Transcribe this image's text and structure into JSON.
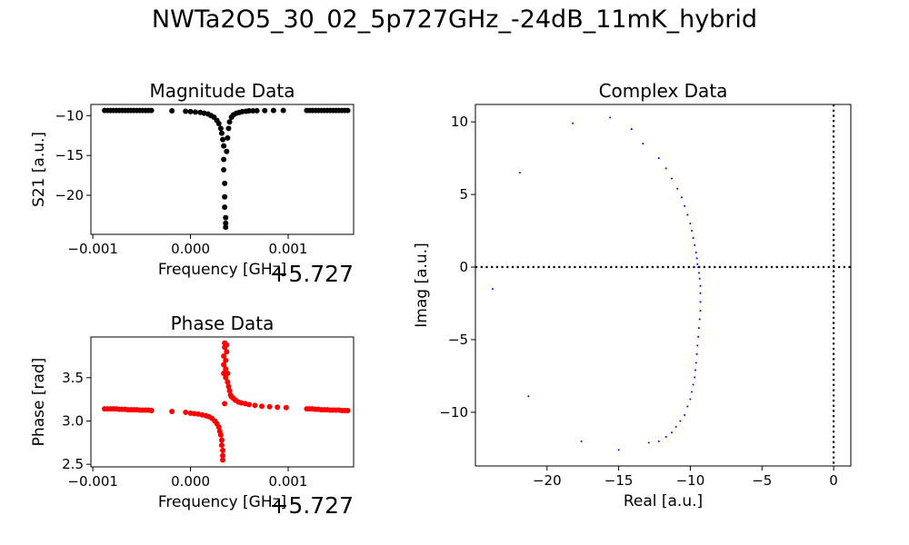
{
  "figure": {
    "suptitle": "NWTa2O5_30_02_5p727GHz_-24dB_11mK_hybrid"
  },
  "chart_data": [
    {
      "id": "magnitude",
      "type": "scatter",
      "title": "Magnitude Data",
      "xlabel": "Frequency [GHz]",
      "ylabel": "S21 [a.u.]",
      "x_offset_label": "+5.727",
      "xlim": [
        -0.00102,
        0.00167
      ],
      "ylim": [
        -24.9,
        -8.6
      ],
      "xticks": [
        -0.001,
        0.0,
        0.001
      ],
      "xtick_labels": [
        "−0.001",
        "0.000",
        "0.001"
      ],
      "yticks": [
        -10,
        -15,
        -20
      ],
      "ytick_labels": [
        "−10",
        "−15",
        "−20"
      ],
      "color": "#000000",
      "x": [
        -0.00088,
        -0.00085,
        -0.00082,
        -0.00079,
        -0.00076,
        -0.00073,
        -0.0007,
        -0.00067,
        -0.00064,
        -0.00061,
        -0.00058,
        -0.00055,
        -0.00052,
        -0.00049,
        -0.00046,
        -0.00043,
        -0.0004,
        -0.00019,
        -5e-05,
        0.0,
        5e-05,
        0.0001,
        0.00014,
        0.00018,
        0.00021,
        0.00024,
        0.00027,
        0.00029,
        0.00031,
        0.00032,
        0.00033,
        0.00034,
        0.00034,
        0.00034,
        0.00035,
        0.00035,
        0.00035,
        0.00036,
        0.00036,
        0.00036,
        0.00037,
        0.00038,
        0.00039,
        0.0004,
        0.00042,
        0.00044,
        0.00047,
        0.0005,
        0.00053,
        0.00057,
        0.0006,
        0.00064,
        0.00068,
        0.00076,
        0.00085,
        0.00095,
        0.00119,
        0.00122,
        0.00125,
        0.00128,
        0.00131,
        0.00134,
        0.00137,
        0.0014,
        0.00143,
        0.00146,
        0.00149,
        0.00152,
        0.00155,
        0.00158,
        0.00161
      ],
      "y": [
        -9.35,
        -9.35,
        -9.35,
        -9.35,
        -9.35,
        -9.35,
        -9.35,
        -9.35,
        -9.35,
        -9.35,
        -9.35,
        -9.35,
        -9.35,
        -9.35,
        -9.35,
        -9.35,
        -9.35,
        -9.4,
        -9.45,
        -9.5,
        -9.55,
        -9.6,
        -9.7,
        -9.8,
        -10.0,
        -10.2,
        -10.6,
        -11.0,
        -11.6,
        -12.2,
        -13.0,
        -13.8,
        -15.5,
        -16.8,
        -18.5,
        -20.2,
        -21.5,
        -22.8,
        -23.5,
        -24.0,
        -14.5,
        -12.8,
        -11.6,
        -10.8,
        -10.2,
        -9.9,
        -9.7,
        -9.6,
        -9.5,
        -9.45,
        -9.4,
        -9.4,
        -9.38,
        -9.37,
        -9.36,
        -9.36,
        -9.35,
        -9.35,
        -9.35,
        -9.35,
        -9.35,
        -9.35,
        -9.35,
        -9.35,
        -9.35,
        -9.35,
        -9.35,
        -9.35,
        -9.35,
        -9.35,
        -9.35
      ]
    },
    {
      "id": "phase",
      "type": "scatter",
      "title": "Phase Data",
      "xlabel": "Frequency [GHz]",
      "ylabel": "Phase [rad]",
      "x_offset_label": "+5.727",
      "xlim": [
        -0.00102,
        0.00167
      ],
      "ylim": [
        2.47,
        3.97
      ],
      "xticks": [
        -0.001,
        0.0,
        0.001
      ],
      "xtick_labels": [
        "−0.001",
        "0.000",
        "0.001"
      ],
      "yticks": [
        2.5,
        3.0,
        3.5
      ],
      "ytick_labels": [
        "2.5",
        "3.0",
        "3.5"
      ],
      "color": "#ff0000",
      "x": [
        -0.00088,
        -0.00085,
        -0.00082,
        -0.00079,
        -0.00076,
        -0.00073,
        -0.0007,
        -0.00067,
        -0.00064,
        -0.00061,
        -0.00058,
        -0.00055,
        -0.00052,
        -0.00049,
        -0.00046,
        -0.00043,
        -0.0004,
        -0.00019,
        -5e-05,
        0.0,
        4e-05,
        8e-05,
        0.00012,
        0.00016,
        0.00019,
        0.00022,
        0.00025,
        0.00027,
        0.00029,
        0.0003,
        0.00031,
        0.00032,
        0.00032,
        0.00033,
        0.00033,
        0.00033,
        0.00034,
        0.00034,
        0.00034,
        0.00035,
        0.00035,
        0.00035,
        0.00036,
        0.00036,
        0.00036,
        0.00037,
        0.00037,
        0.00038,
        0.00038,
        0.00039,
        0.0004,
        0.00041,
        0.00042,
        0.00044,
        0.00046,
        0.00049,
        0.00052,
        0.00056,
        0.0006,
        0.00066,
        0.00073,
        0.00081,
        0.00089,
        0.00098,
        0.00119,
        0.00122,
        0.00125,
        0.00128,
        0.00131,
        0.00134,
        0.00137,
        0.0014,
        0.00143,
        0.00146,
        0.00149,
        0.00152,
        0.00155,
        0.00158,
        0.00161
      ],
      "y": [
        3.14,
        3.14,
        3.14,
        3.14,
        3.14,
        3.135,
        3.135,
        3.135,
        3.13,
        3.13,
        3.13,
        3.13,
        3.125,
        3.125,
        3.125,
        3.125,
        3.12,
        3.11,
        3.1,
        3.09,
        3.085,
        3.08,
        3.07,
        3.06,
        3.05,
        3.03,
        3.0,
        2.97,
        2.93,
        2.88,
        2.84,
        2.78,
        2.72,
        2.66,
        2.6,
        2.55,
        3.55,
        3.65,
        3.75,
        3.85,
        3.9,
        3.2,
        3.5,
        3.6,
        3.7,
        3.8,
        3.88,
        3.45,
        3.55,
        3.4,
        3.35,
        3.3,
        3.28,
        3.26,
        3.24,
        3.22,
        3.21,
        3.2,
        3.19,
        3.18,
        3.17,
        3.165,
        3.16,
        3.155,
        3.14,
        3.14,
        3.14,
        3.135,
        3.135,
        3.13,
        3.13,
        3.13,
        3.125,
        3.125,
        3.125,
        3.125,
        3.12,
        3.12,
        3.12
      ]
    },
    {
      "id": "complex",
      "type": "scatter",
      "title": "Complex Data",
      "xlabel": "Real [a.u.]",
      "ylabel": "Imag [a.u.]",
      "xlim": [
        -25.0,
        1.2
      ],
      "ylim": [
        -13.7,
        11.2
      ],
      "xticks": [
        -20,
        -15,
        -10,
        -5,
        0
      ],
      "xtick_labels": [
        "−20",
        "−15",
        "−10",
        "−5",
        "0"
      ],
      "yticks": [
        10,
        5,
        0,
        -5,
        -10
      ],
      "ytick_labels": [
        "10",
        "5",
        "0",
        "−5",
        "−10"
      ],
      "color": "#0000ff",
      "reference_lines": [
        "x = 0",
        "y = 0"
      ],
      "x": [
        -23.8,
        -21.9,
        -21.3,
        -18.2,
        -17.6,
        -15.6,
        -15.0,
        -14.1,
        -13.3,
        -12.9,
        -12.2,
        -11.7,
        -11.3,
        -10.9,
        -10.6,
        -10.4,
        -10.2,
        -10.0,
        -9.9,
        -9.8,
        -9.7,
        -9.6,
        -9.55,
        -9.5,
        -9.45,
        -9.4,
        -9.35,
        -9.3,
        -9.3,
        -9.3,
        -9.3,
        -9.35,
        -9.4,
        -9.45,
        -9.5,
        -9.55,
        -9.6,
        -9.65,
        -9.7,
        -9.8,
        -9.9,
        -10.0,
        -10.2,
        -10.4,
        -10.7,
        -11.0,
        -11.3,
        -11.7,
        -12.2
      ],
      "y": [
        -1.5,
        6.5,
        -8.9,
        9.9,
        -12.0,
        10.3,
        -12.6,
        9.5,
        8.5,
        -12.1,
        7.5,
        6.8,
        6.1,
        5.4,
        4.8,
        4.2,
        3.6,
        3.0,
        2.5,
        2.0,
        1.5,
        1.0,
        0.6,
        0.2,
        0.0,
        -0.4,
        -0.8,
        -1.3,
        -1.8,
        -2.4,
        -3.0,
        -3.6,
        -4.2,
        -4.8,
        -5.4,
        -6.0,
        -6.6,
        -7.1,
        -7.6,
        -8.1,
        -8.6,
        -9.1,
        -9.6,
        -10.2,
        -10.6,
        -11.0,
        -11.4,
        -11.7,
        -12.0
      ]
    }
  ]
}
